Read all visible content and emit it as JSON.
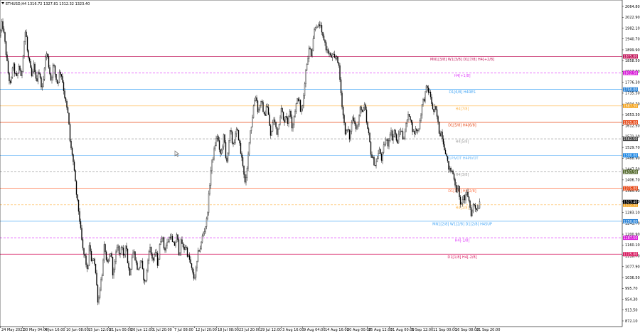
{
  "header": {
    "symbol_line": "ETHUSD,H4  1316.72 1327.81 1312.32 1323.40"
  },
  "chart_data": {
    "type": "candlestick",
    "symbol": "ETHUSD",
    "timeframe": "H4",
    "last_bar": {
      "open": 1316.72,
      "high": 1327.81,
      "low": 1312.32,
      "close": 1323.4
    },
    "ylim": [
      872.1,
      2064.8
    ],
    "y_ticks": [
      "2064.80",
      "2022.90",
      "1982.10",
      "1940.70",
      "1899.90",
      "1858.50",
      "1817.70",
      "1776.30",
      "1735.50",
      "1694.70",
      "1653.30",
      "1612.50",
      "1571.10",
      "1529.70",
      "1488.90",
      "1447.50",
      "1406.70",
      "1365.30",
      "1323.40",
      "1283.10",
      "1241.70",
      "1200.90",
      "1160.10",
      "1118.70",
      "1077.90",
      "1036.50",
      "995.70",
      "954.30",
      "913.50",
      "872.10"
    ],
    "x_ticks": [
      "24 May 2022",
      "30 May 04:00",
      "4 Jun 16:00",
      "10 Jun 08:00",
      "15 Jun 12:00",
      "21 Jun 00:00",
      "26 Jun 12:00",
      "1 Jul 20:00",
      "7 Jul 08:00",
      "12 Jul 20:00",
      "18 Jul 08:00",
      "23 Jul 20:00",
      "29 Jul 12:00",
      "3 Aug 16:00",
      "9 Aug 04:00",
      "14 Aug 16:00",
      "20 Aug 00:00",
      "25 Aug 12:00",
      "31 Aug 00:00",
      "5 Sep 12:00",
      "11 Sep 00:00",
      "16 Sep 08:00",
      "21 Sep 20:00"
    ],
    "price_path": [
      [
        0,
        1955
      ],
      [
        3,
        2005
      ],
      [
        6,
        1950
      ],
      [
        9,
        1875
      ],
      [
        12,
        1800
      ],
      [
        15,
        1760
      ],
      [
        18,
        1850
      ],
      [
        21,
        1810
      ],
      [
        24,
        1790
      ],
      [
        27,
        1850
      ],
      [
        30,
        1780
      ],
      [
        33,
        1910
      ],
      [
        36,
        1980
      ],
      [
        39,
        1880
      ],
      [
        42,
        1840
      ],
      [
        45,
        1790
      ],
      [
        48,
        1850
      ],
      [
        51,
        1770
      ],
      [
        54,
        1830
      ],
      [
        57,
        1780
      ],
      [
        60,
        1750
      ],
      [
        63,
        1860
      ],
      [
        66,
        1890
      ],
      [
        69,
        1830
      ],
      [
        72,
        1780
      ],
      [
        75,
        1850
      ],
      [
        78,
        1800
      ],
      [
        81,
        1770
      ],
      [
        84,
        1820
      ],
      [
        87,
        1800
      ],
      [
        90,
        1740
      ],
      [
        93,
        1690
      ],
      [
        96,
        1650
      ],
      [
        99,
        1535
      ],
      [
        102,
        1500
      ],
      [
        105,
        1420
      ],
      [
        108,
        1340
      ],
      [
        111,
        1280
      ],
      [
        114,
        1200
      ],
      [
        117,
        1130
      ],
      [
        120,
        1110
      ],
      [
        123,
        1050
      ],
      [
        126,
        1170
      ],
      [
        129,
        1080
      ],
      [
        132,
        1120
      ],
      [
        135,
        1040
      ],
      [
        138,
        935
      ],
      [
        141,
        1010
      ],
      [
        144,
        1060
      ],
      [
        147,
        1170
      ],
      [
        150,
        1080
      ],
      [
        153,
        1100
      ],
      [
        156,
        1140
      ],
      [
        159,
        1040
      ],
      [
        162,
        1100
      ],
      [
        165,
        1170
      ],
      [
        168,
        1120
      ],
      [
        171,
        1160
      ],
      [
        174,
        1100
      ],
      [
        177,
        1180
      ],
      [
        180,
        1080
      ],
      [
        183,
        1050
      ],
      [
        186,
        1130
      ],
      [
        189,
        1130
      ],
      [
        192,
        1080
      ],
      [
        195,
        1060
      ],
      [
        198,
        1110
      ],
      [
        201,
        1050
      ],
      [
        204,
        1010
      ],
      [
        207,
        1070
      ],
      [
        210,
        1160
      ],
      [
        213,
        1120
      ],
      [
        216,
        1100
      ],
      [
        219,
        1140
      ],
      [
        222,
        1080
      ],
      [
        225,
        1170
      ],
      [
        228,
        1200
      ],
      [
        231,
        1140
      ],
      [
        234,
        1160
      ],
      [
        237,
        1180
      ],
      [
        240,
        1200
      ],
      [
        243,
        1160
      ],
      [
        246,
        1160
      ],
      [
        249,
        1200
      ],
      [
        252,
        1120
      ],
      [
        255,
        1180
      ],
      [
        258,
        1140
      ],
      [
        261,
        1160
      ],
      [
        264,
        1120
      ],
      [
        267,
        1100
      ],
      [
        270,
        1060
      ],
      [
        273,
        1030
      ],
      [
        276,
        1070
      ],
      [
        279,
        1140
      ],
      [
        282,
        1150
      ],
      [
        285,
        1200
      ],
      [
        288,
        1220
      ],
      [
        291,
        1260
      ],
      [
        294,
        1360
      ],
      [
        297,
        1460
      ],
      [
        300,
        1500
      ],
      [
        303,
        1550
      ],
      [
        306,
        1580
      ],
      [
        309,
        1500
      ],
      [
        312,
        1520
      ],
      [
        315,
        1580
      ],
      [
        318,
        1470
      ],
      [
        321,
        1520
      ],
      [
        324,
        1600
      ],
      [
        327,
        1540
      ],
      [
        330,
        1560
      ],
      [
        333,
        1600
      ],
      [
        336,
        1560
      ],
      [
        339,
        1500
      ],
      [
        342,
        1460
      ],
      [
        345,
        1380
      ],
      [
        348,
        1460
      ],
      [
        351,
        1580
      ],
      [
        354,
        1620
      ],
      [
        357,
        1700
      ],
      [
        360,
        1730
      ],
      [
        363,
        1660
      ],
      [
        366,
        1700
      ],
      [
        369,
        1690
      ],
      [
        372,
        1640
      ],
      [
        375,
        1700
      ],
      [
        378,
        1640
      ],
      [
        381,
        1560
      ],
      [
        384,
        1640
      ],
      [
        387,
        1620
      ],
      [
        390,
        1580
      ],
      [
        393,
        1640
      ],
      [
        396,
        1680
      ],
      [
        399,
        1620
      ],
      [
        402,
        1660
      ],
      [
        405,
        1620
      ],
      [
        408,
        1680
      ],
      [
        411,
        1600
      ],
      [
        414,
        1660
      ],
      [
        417,
        1700
      ],
      [
        420,
        1720
      ],
      [
        423,
        1660
      ],
      [
        426,
        1690
      ],
      [
        429,
        1800
      ],
      [
        432,
        1860
      ],
      [
        435,
        1910
      ],
      [
        438,
        1880
      ],
      [
        441,
        1960
      ],
      [
        444,
        2000
      ],
      [
        447,
        1980
      ],
      [
        450,
        2000
      ],
      [
        453,
        1950
      ],
      [
        456,
        1940
      ],
      [
        459,
        1900
      ],
      [
        462,
        1890
      ],
      [
        465,
        1870
      ],
      [
        468,
        1880
      ],
      [
        471,
        1860
      ],
      [
        474,
        1880
      ],
      [
        477,
        1820
      ],
      [
        480,
        1720
      ],
      [
        483,
        1640
      ],
      [
        486,
        1580
      ],
      [
        489,
        1600
      ],
      [
        492,
        1560
      ],
      [
        495,
        1640
      ],
      [
        498,
        1640
      ],
      [
        501,
        1600
      ],
      [
        504,
        1620
      ],
      [
        507,
        1690
      ],
      [
        510,
        1660
      ],
      [
        513,
        1690
      ],
      [
        516,
        1610
      ],
      [
        519,
        1570
      ],
      [
        522,
        1500
      ],
      [
        525,
        1480
      ],
      [
        528,
        1460
      ],
      [
        531,
        1500
      ],
      [
        534,
        1520
      ],
      [
        537,
        1480
      ],
      [
        540,
        1540
      ],
      [
        543,
        1560
      ],
      [
        546,
        1540
      ],
      [
        549,
        1600
      ],
      [
        552,
        1560
      ],
      [
        555,
        1600
      ],
      [
        558,
        1540
      ],
      [
        561,
        1580
      ],
      [
        564,
        1600
      ],
      [
        567,
        1560
      ],
      [
        570,
        1600
      ],
      [
        573,
        1640
      ],
      [
        576,
        1660
      ],
      [
        579,
        1610
      ],
      [
        582,
        1580
      ],
      [
        585,
        1600
      ],
      [
        588,
        1590
      ],
      [
        591,
        1640
      ],
      [
        594,
        1700
      ],
      [
        597,
        1720
      ],
      [
        600,
        1760
      ],
      [
        603,
        1740
      ],
      [
        606,
        1720
      ],
      [
        609,
        1660
      ],
      [
        612,
        1680
      ],
      [
        615,
        1640
      ],
      [
        618,
        1580
      ],
      [
        621,
        1590
      ],
      [
        624,
        1540
      ],
      [
        627,
        1510
      ],
      [
        630,
        1460
      ],
      [
        633,
        1440
      ],
      [
        636,
        1440
      ],
      [
        639,
        1410
      ],
      [
        642,
        1360
      ],
      [
        645,
        1380
      ],
      [
        648,
        1290
      ],
      [
        651,
        1350
      ],
      [
        654,
        1330
      ],
      [
        657,
        1360
      ],
      [
        660,
        1320
      ],
      [
        663,
        1270
      ],
      [
        666,
        1320
      ],
      [
        669,
        1300
      ],
      [
        672,
        1300
      ],
      [
        675,
        1323.4
      ]
    ],
    "levels": [
      {
        "price": 1875.0,
        "label": "MN1[3/8] W1[3/8] D1[7/8] H4[+2/8]",
        "badge": "1875.00",
        "color": "#c2185b",
        "dash": "solid",
        "badge_color": "#c2185b"
      },
      {
        "price": 1812.5,
        "label": "H4[+1/8]",
        "badge": "1812.50",
        "color": "#e040fb",
        "dash": "dashed",
        "badge_color": "#d81bd8"
      },
      {
        "price": 1750.0,
        "label": "D1[6/8] H4RES",
        "badge": "1750.00",
        "color": "#42a5f5",
        "dash": "solid",
        "badge_color": "#2f86d8"
      },
      {
        "price": 1687.5,
        "label": "H4[7/8]",
        "badge": "1687.50",
        "color": "#ffb74d",
        "dash": "solid",
        "badge_color": "#f5a623"
      },
      {
        "price": 1625.0,
        "label": "D1[5/8] H4[6/8]",
        "badge": "1625.00",
        "color": "#e64a19",
        "dash": "solid",
        "badge_color": "#e64a19"
      },
      {
        "price": 1562.5,
        "label": "H4[5/8]",
        "badge": "1562.50",
        "color": "#9e9e9e",
        "dash": "dashed",
        "badge_color": "#444444"
      },
      {
        "price": 1500.0,
        "label": "D1PIVOT H4PIVOT",
        "badge": "1500.00",
        "color": "#64b5f6",
        "dash": "solid",
        "badge_color": "#1e88e5"
      },
      {
        "price": 1437.5,
        "label": "H4[3/8]",
        "badge": "1437.50",
        "color": "#9e9e9e",
        "dash": "dashed",
        "badge_color": "#556b2f"
      },
      {
        "price": 1375.0,
        "label": "D1[3/8] H4[2/8]",
        "badge": "1375.00",
        "color": "#ff7043",
        "dash": "solid",
        "badge_color": "#e64a19"
      },
      {
        "price": 1312.5,
        "label": "H4[1/8]",
        "badge": "1312.50",
        "color": "#ffb74d",
        "dash": "dashed",
        "badge_color": "#f5a623"
      },
      {
        "price": 1250.0,
        "label": "MN1[2/8] W1[2/8] D1[2/8] H4SUP",
        "badge": "1250.00",
        "color": "#42a5f5",
        "dash": "solid",
        "badge_color": "#2f86d8"
      },
      {
        "price": 1187.5,
        "label": "H4[-1/8]",
        "badge": "1187.50",
        "color": "#e040fb",
        "dash": "dashed",
        "badge_color": "#d81bd8"
      },
      {
        "price": 1125.0,
        "label": "D1[1/8] H4[-2/8]",
        "badge": "1125.00",
        "color": "#d81b60",
        "dash": "solid",
        "badge_color": "#d81b60"
      }
    ],
    "current_price": {
      "value": 1323.4,
      "badge": "1323.40",
      "badge_color": "#000000"
    },
    "grid": false
  }
}
